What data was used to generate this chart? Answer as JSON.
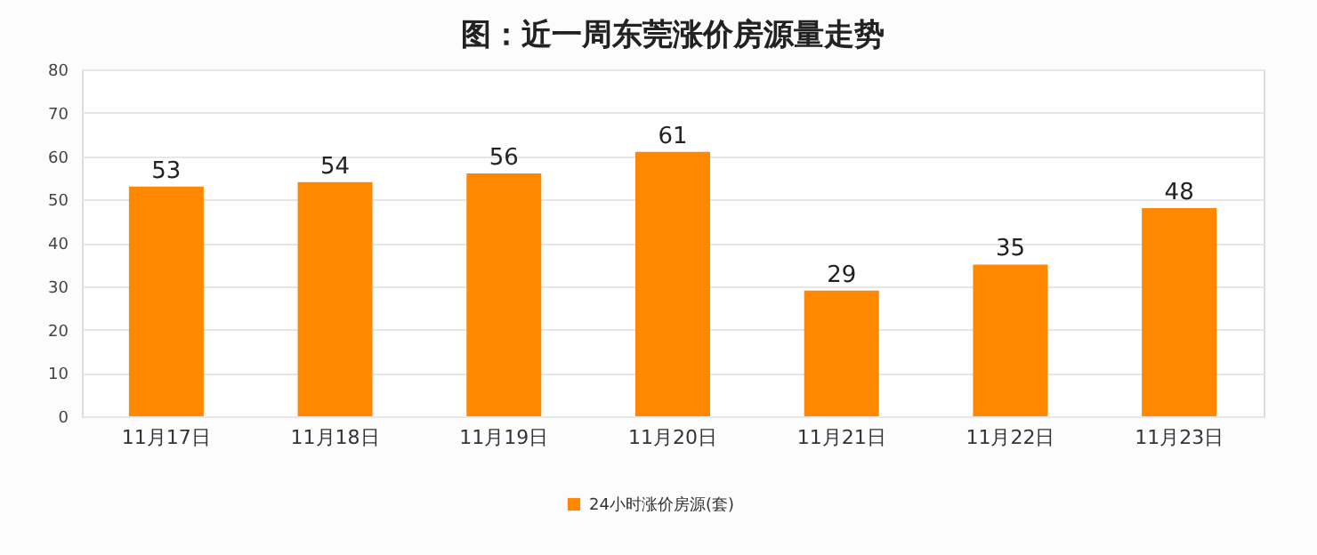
{
  "chart_data": {
    "type": "bar",
    "title": "图：近一周东莞涨价房源量走势",
    "categories": [
      "11月17日",
      "11月18日",
      "11月19日",
      "11月20日",
      "11月21日",
      "11月22日",
      "11月23日"
    ],
    "series": [
      {
        "name": "24小时涨价房源(套)",
        "color": "#ff8800",
        "values": [
          53,
          54,
          56,
          61,
          29,
          35,
          48
        ]
      }
    ],
    "ylim": [
      0,
      80
    ],
    "yticks": [
      0,
      10,
      20,
      30,
      40,
      50,
      60,
      70,
      80
    ],
    "grid": "y",
    "legend": "bottom",
    "data_labels": true
  }
}
